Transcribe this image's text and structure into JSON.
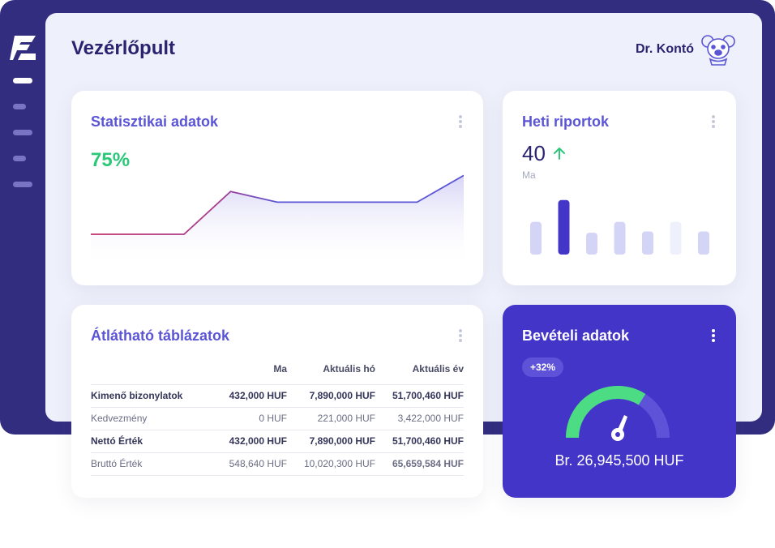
{
  "page": {
    "title": "Vezérlőpult"
  },
  "user": {
    "name": "Dr. Kontó"
  },
  "colors": {
    "frame": "#332d80",
    "accent": "#5b55d6",
    "success": "#2bc879",
    "revenue_bg": "#4435c9"
  },
  "icons": {
    "logo": "logo-icon",
    "avatar": "koala-avatar-icon",
    "kebab": "kebab-menu-icon",
    "arrow": "arrow-up-icon"
  },
  "stats": {
    "title": "Statisztikai adatok",
    "percent": "75%"
  },
  "weekly": {
    "title": "Heti riportok",
    "value": "40",
    "period": "Ma"
  },
  "table": {
    "title": "Átlátható táblázatok",
    "columns": [
      "",
      "Ma",
      "Aktuális hó",
      "Aktuális év"
    ],
    "rows": [
      {
        "label": "Kimenő bizonylatok",
        "values": [
          "432,000 HUF",
          "7,890,000 HUF",
          "51,700,460 HUF"
        ],
        "style": "bold"
      },
      {
        "label": "Kedvezmény",
        "values": [
          "0 HUF",
          "221,000 HUF",
          "3,422,000 HUF"
        ],
        "style": "light"
      },
      {
        "label": "Nettó Érték",
        "values": [
          "432,000 HUF",
          "7,890,000 HUF",
          "51,700,460 HUF"
        ],
        "style": "bold"
      },
      {
        "label": "Bruttó Érték",
        "values": [
          "548,640 HUF",
          "10,020,300 HUF",
          "65,659,584 HUF"
        ],
        "style": "light"
      }
    ]
  },
  "revenue": {
    "title": "Bevételi adatok",
    "badge": "+32%",
    "amount": "Br. 26,945,500 HUF",
    "gauge_fraction": 0.68
  },
  "chart_data": [
    {
      "type": "line",
      "x": [
        0,
        1,
        2,
        3,
        4,
        5,
        6,
        7,
        8
      ],
      "values": [
        25,
        25,
        25,
        65,
        55,
        55,
        55,
        55,
        80
      ],
      "ylim": [
        0,
        100
      ]
    },
    {
      "type": "bar",
      "values": [
        48,
        80,
        32,
        48,
        34,
        48,
        34
      ],
      "highlight_index": 1,
      "ylim": [
        0,
        100
      ]
    }
  ]
}
